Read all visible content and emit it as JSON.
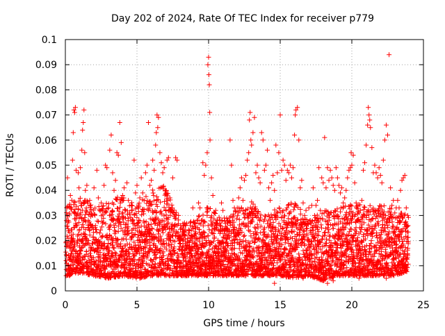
{
  "chart_data": {
    "type": "scatter",
    "title": "Day 202 of 2024, Rate Of TEC Index for receiver p779",
    "xlabel": "GPS time / hours",
    "ylabel": "ROTI / TECUs",
    "xlim": [
      0,
      25
    ],
    "ylim": [
      0,
      0.1
    ],
    "xticks": [
      0,
      5,
      10,
      15,
      20,
      25
    ],
    "xtick_labels": [
      "0",
      "5",
      "10",
      "15",
      "20",
      "25"
    ],
    "yticks": [
      0,
      0.01,
      0.02,
      0.03,
      0.04,
      0.05,
      0.06,
      0.07,
      0.08,
      0.09,
      0.1
    ],
    "ytick_labels": [
      "0",
      "0.01",
      "0.02",
      "0.03",
      "0.04",
      "0.05",
      "0.06",
      "0.07",
      "0.08",
      "0.09",
      "0.1"
    ],
    "grid": true,
    "marker": "plus",
    "color": "#ff0000",
    "points": [
      [
        0.05,
        0.012
      ],
      [
        0.1,
        0.033
      ],
      [
        0.15,
        0.045
      ],
      [
        0.2,
        0.028
      ],
      [
        0.25,
        0.008
      ],
      [
        0.3,
        0.018
      ],
      [
        0.35,
        0.038
      ],
      [
        0.4,
        0.022
      ],
      [
        0.45,
        0.036
      ],
      [
        0.5,
        0.052
      ],
      [
        0.55,
        0.063
      ],
      [
        0.6,
        0.072
      ],
      [
        0.65,
        0.071
      ],
      [
        0.7,
        0.073
      ],
      [
        0.75,
        0.048
      ],
      [
        0.8,
        0.03
      ],
      [
        0.85,
        0.015
      ],
      [
        0.9,
        0.047
      ],
      [
        0.95,
        0.041
      ],
      [
        1.0,
        0.018
      ],
      [
        1.05,
        0.049
      ],
      [
        1.1,
        0.034
      ],
      [
        1.15,
        0.056
      ],
      [
        1.2,
        0.064
      ],
      [
        1.25,
        0.067
      ],
      [
        1.3,
        0.072
      ],
      [
        1.35,
        0.055
      ],
      [
        1.4,
        0.04
      ],
      [
        1.5,
        0.042
      ],
      [
        1.6,
        0.028
      ],
      [
        1.7,
        0.036
      ],
      [
        1.8,
        0.011
      ],
      [
        1.9,
        0.03
      ],
      [
        2.0,
        0.041
      ],
      [
        2.1,
        0.026
      ],
      [
        2.2,
        0.048
      ],
      [
        2.3,
        0.037
      ],
      [
        2.4,
        0.019
      ],
      [
        2.5,
        0.035
      ],
      [
        2.6,
        0.027
      ],
      [
        2.7,
        0.042
      ],
      [
        2.8,
        0.05
      ],
      [
        2.9,
        0.049
      ],
      [
        3.0,
        0.033
      ],
      [
        3.1,
        0.056
      ],
      [
        3.2,
        0.062
      ],
      [
        3.3,
        0.047
      ],
      [
        3.4,
        0.04
      ],
      [
        3.5,
        0.044
      ],
      [
        3.6,
        0.055
      ],
      [
        3.7,
        0.054
      ],
      [
        3.8,
        0.067
      ],
      [
        3.9,
        0.059
      ],
      [
        4.0,
        0.038
      ],
      [
        4.1,
        0.041
      ],
      [
        4.2,
        0.029
      ],
      [
        4.3,
        0.043
      ],
      [
        4.4,
        0.036
      ],
      [
        4.5,
        0.031
      ],
      [
        4.6,
        0.034
      ],
      [
        4.7,
        0.028
      ],
      [
        4.8,
        0.052
      ],
      [
        4.9,
        0.039
      ],
      [
        5.0,
        0.042
      ],
      [
        5.1,
        0.033
      ],
      [
        5.2,
        0.037
      ],
      [
        5.3,
        0.045
      ],
      [
        5.4,
        0.039
      ],
      [
        5.5,
        0.036
      ],
      [
        5.6,
        0.047
      ],
      [
        5.7,
        0.05
      ],
      [
        5.8,
        0.067
      ],
      [
        5.9,
        0.042
      ],
      [
        6.0,
        0.044
      ],
      [
        6.1,
        0.052
      ],
      [
        6.2,
        0.048
      ],
      [
        6.3,
        0.058
      ],
      [
        6.35,
        0.063
      ],
      [
        6.4,
        0.07
      ],
      [
        6.45,
        0.065
      ],
      [
        6.5,
        0.069
      ],
      [
        6.6,
        0.055
      ],
      [
        6.7,
        0.051
      ],
      [
        6.8,
        0.047
      ],
      [
        6.9,
        0.049
      ],
      [
        7.0,
        0.04
      ],
      [
        7.1,
        0.052
      ],
      [
        7.2,
        0.053
      ],
      [
        7.3,
        0.037
      ],
      [
        7.4,
        0.032
      ],
      [
        7.5,
        0.045
      ],
      [
        7.6,
        0.026
      ],
      [
        7.7,
        0.053
      ],
      [
        7.8,
        0.052
      ],
      [
        7.9,
        0.03
      ],
      [
        8.0,
        0.02
      ],
      [
        8.1,
        0.025
      ],
      [
        8.2,
        0.015
      ],
      [
        8.3,
        0.022
      ],
      [
        8.4,
        0.026
      ],
      [
        8.5,
        0.018
      ],
      [
        8.6,
        0.023
      ],
      [
        8.7,
        0.017
      ],
      [
        8.8,
        0.022
      ],
      [
        8.9,
        0.033
      ],
      [
        9.0,
        0.027
      ],
      [
        9.1,
        0.025
      ],
      [
        9.2,
        0.028
      ],
      [
        9.3,
        0.035
      ],
      [
        9.4,
        0.033
      ],
      [
        9.5,
        0.028
      ],
      [
        9.6,
        0.051
      ],
      [
        9.7,
        0.046
      ],
      [
        9.8,
        0.05
      ],
      [
        9.9,
        0.055
      ],
      [
        9.95,
        0.09
      ],
      [
        10.0,
        0.093
      ],
      [
        10.02,
        0.086
      ],
      [
        10.05,
        0.082
      ],
      [
        10.08,
        0.071
      ],
      [
        10.1,
        0.06
      ],
      [
        10.2,
        0.045
      ],
      [
        10.3,
        0.038
      ],
      [
        10.4,
        0.025
      ],
      [
        10.5,
        0.032
      ],
      [
        10.6,
        0.028
      ],
      [
        10.7,
        0.024
      ],
      [
        10.8,
        0.028
      ],
      [
        10.9,
        0.035
      ],
      [
        11.0,
        0.032
      ],
      [
        11.1,
        0.029
      ],
      [
        11.2,
        0.022
      ],
      [
        11.3,
        0.027
      ],
      [
        11.4,
        0.022
      ],
      [
        11.5,
        0.06
      ],
      [
        11.6,
        0.05
      ],
      [
        11.7,
        0.036
      ],
      [
        11.8,
        0.033
      ],
      [
        11.9,
        0.022
      ],
      [
        12.0,
        0.033
      ],
      [
        12.1,
        0.037
      ],
      [
        12.2,
        0.041
      ],
      [
        12.3,
        0.045
      ],
      [
        12.4,
        0.036
      ],
      [
        12.5,
        0.044
      ],
      [
        12.6,
        0.046
      ],
      [
        12.7,
        0.052
      ],
      [
        12.8,
        0.055
      ],
      [
        12.85,
        0.068
      ],
      [
        12.9,
        0.071
      ],
      [
        12.95,
        0.06
      ],
      [
        13.0,
        0.058
      ],
      [
        13.1,
        0.063
      ],
      [
        13.2,
        0.069
      ],
      [
        13.3,
        0.047
      ],
      [
        13.4,
        0.05
      ],
      [
        13.5,
        0.045
      ],
      [
        13.6,
        0.043
      ],
      [
        13.7,
        0.063
      ],
      [
        13.8,
        0.06
      ],
      [
        13.9,
        0.048
      ],
      [
        14.0,
        0.05
      ],
      [
        14.1,
        0.056
      ],
      [
        14.2,
        0.041
      ],
      [
        14.3,
        0.036
      ],
      [
        14.4,
        0.043
      ],
      [
        14.5,
        0.046
      ],
      [
        14.6,
        0.04
      ],
      [
        14.7,
        0.058
      ],
      [
        14.8,
        0.047
      ],
      [
        14.9,
        0.055
      ],
      [
        15.0,
        0.07
      ],
      [
        15.1,
        0.048
      ],
      [
        15.2,
        0.052
      ],
      [
        15.3,
        0.05
      ],
      [
        15.4,
        0.044
      ],
      [
        15.5,
        0.048
      ],
      [
        15.6,
        0.047
      ],
      [
        15.7,
        0.05
      ],
      [
        15.8,
        0.045
      ],
      [
        15.9,
        0.049
      ],
      [
        16.0,
        0.062
      ],
      [
        16.05,
        0.07
      ],
      [
        16.1,
        0.072
      ],
      [
        16.2,
        0.073
      ],
      [
        16.3,
        0.06
      ],
      [
        16.4,
        0.041
      ],
      [
        16.5,
        0.044
      ],
      [
        16.6,
        0.035
      ],
      [
        16.7,
        0.03
      ],
      [
        16.8,
        0.032
      ],
      [
        16.9,
        0.027
      ],
      [
        17.0,
        0.033
      ],
      [
        17.1,
        0.028
      ],
      [
        17.2,
        0.034
      ],
      [
        17.3,
        0.041
      ],
      [
        17.4,
        0.03
      ],
      [
        17.5,
        0.034
      ],
      [
        17.6,
        0.036
      ],
      [
        17.7,
        0.049
      ],
      [
        17.8,
        0.032
      ],
      [
        17.9,
        0.045
      ],
      [
        18.0,
        0.043
      ],
      [
        18.1,
        0.061
      ],
      [
        18.2,
        0.041
      ],
      [
        18.3,
        0.049
      ],
      [
        18.4,
        0.044
      ],
      [
        18.5,
        0.048
      ],
      [
        18.6,
        0.045
      ],
      [
        18.7,
        0.042
      ],
      [
        18.8,
        0.04
      ],
      [
        18.9,
        0.049
      ],
      [
        19.0,
        0.045
      ],
      [
        19.1,
        0.042
      ],
      [
        19.2,
        0.039
      ],
      [
        19.3,
        0.041
      ],
      [
        19.4,
        0.035
      ],
      [
        19.5,
        0.037
      ],
      [
        19.6,
        0.04
      ],
      [
        19.7,
        0.045
      ],
      [
        19.8,
        0.048
      ],
      [
        19.9,
        0.049
      ],
      [
        19.95,
        0.055
      ],
      [
        20.0,
        0.05
      ],
      [
        20.1,
        0.054
      ],
      [
        20.2,
        0.043
      ],
      [
        20.3,
        0.035
      ],
      [
        20.4,
        0.028
      ],
      [
        20.5,
        0.031
      ],
      [
        20.6,
        0.032
      ],
      [
        20.7,
        0.036
      ],
      [
        20.8,
        0.048
      ],
      [
        20.9,
        0.051
      ],
      [
        21.0,
        0.058
      ],
      [
        21.1,
        0.066
      ],
      [
        21.15,
        0.073
      ],
      [
        21.2,
        0.07
      ],
      [
        21.25,
        0.068
      ],
      [
        21.3,
        0.065
      ],
      [
        21.4,
        0.057
      ],
      [
        21.5,
        0.047
      ],
      [
        21.6,
        0.05
      ],
      [
        21.7,
        0.047
      ],
      [
        21.8,
        0.045
      ],
      [
        21.9,
        0.049
      ],
      [
        22.0,
        0.046
      ],
      [
        22.1,
        0.043
      ],
      [
        22.2,
        0.052
      ],
      [
        22.3,
        0.06
      ],
      [
        22.4,
        0.066
      ],
      [
        22.5,
        0.062
      ],
      [
        22.6,
        0.094
      ],
      [
        22.7,
        0.041
      ],
      [
        22.8,
        0.034
      ],
      [
        22.9,
        0.036
      ],
      [
        23.0,
        0.031
      ],
      [
        23.1,
        0.033
      ],
      [
        23.2,
        0.036
      ],
      [
        23.3,
        0.033
      ],
      [
        23.4,
        0.04
      ],
      [
        23.5,
        0.044
      ],
      [
        23.6,
        0.045
      ],
      [
        23.7,
        0.046
      ],
      [
        23.8,
        0.033
      ],
      [
        23.9,
        0.03
      ],
      [
        0.3,
        0.006
      ],
      [
        1.2,
        0.007
      ],
      [
        2.5,
        0.008
      ],
      [
        3.4,
        0.006
      ],
      [
        4.5,
        0.007
      ],
      [
        5.2,
        0.005
      ],
      [
        6.1,
        0.008
      ],
      [
        7.3,
        0.006
      ],
      [
        8.2,
        0.006
      ],
      [
        9.2,
        0.007
      ],
      [
        10.5,
        0.006
      ],
      [
        11.3,
        0.007
      ],
      [
        12.4,
        0.008
      ],
      [
        13.3,
        0.006
      ],
      [
        14.6,
        0.003
      ],
      [
        15.4,
        0.007
      ],
      [
        16.6,
        0.005
      ],
      [
        17.5,
        0.006
      ],
      [
        18.3,
        0.003
      ],
      [
        18.7,
        0.004
      ],
      [
        19.4,
        0.006
      ],
      [
        20.5,
        0.005
      ],
      [
        21.6,
        0.007
      ],
      [
        22.4,
        0.005
      ],
      [
        23.5,
        0.007
      ]
    ],
    "band": {
      "x_start": 0.05,
      "x_end": 23.95,
      "density": 26,
      "envelope": [
        [
          0,
          0.006,
          0.034
        ],
        [
          1,
          0.007,
          0.038
        ],
        [
          2,
          0.006,
          0.034
        ],
        [
          3,
          0.005,
          0.036
        ],
        [
          4,
          0.006,
          0.038
        ],
        [
          5,
          0.005,
          0.034
        ],
        [
          6,
          0.006,
          0.04
        ],
        [
          7,
          0.006,
          0.042
        ],
        [
          8,
          0.006,
          0.028
        ],
        [
          9,
          0.006,
          0.028
        ],
        [
          10,
          0.006,
          0.034
        ],
        [
          11,
          0.006,
          0.028
        ],
        [
          12,
          0.006,
          0.033
        ],
        [
          13,
          0.006,
          0.036
        ],
        [
          14,
          0.006,
          0.03
        ],
        [
          15,
          0.006,
          0.034
        ],
        [
          16,
          0.005,
          0.036
        ],
        [
          17,
          0.006,
          0.028
        ],
        [
          18,
          0.004,
          0.032
        ],
        [
          19,
          0.006,
          0.033
        ],
        [
          20,
          0.006,
          0.035
        ],
        [
          21,
          0.006,
          0.034
        ],
        [
          22,
          0.006,
          0.035
        ],
        [
          23,
          0.006,
          0.032
        ],
        [
          24,
          0.008,
          0.03
        ]
      ]
    }
  }
}
